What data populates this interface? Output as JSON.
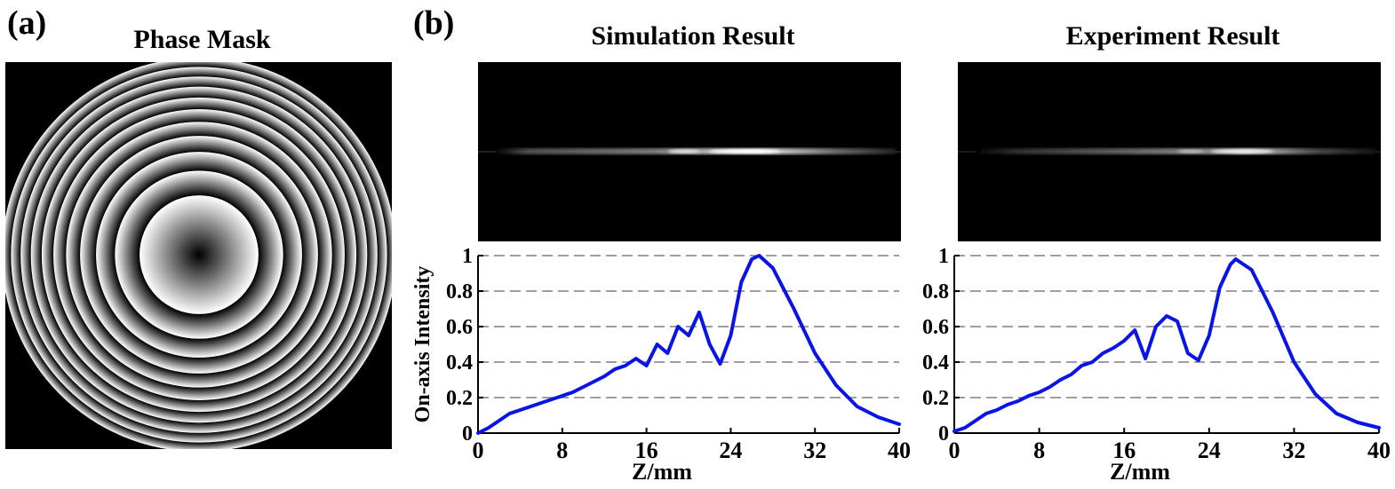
{
  "panel_labels": {
    "a": "(a)",
    "b": "(b)"
  },
  "titles": {
    "phase_mask": "Phase Mask",
    "simulation": "Simulation Result",
    "experiment": "Experiment Result"
  },
  "colors": {
    "curve": "#0a14e6",
    "grid": "#7f7f7f",
    "background": "#000000"
  },
  "chart_data": [
    {
      "type": "line",
      "title": "Simulation Result",
      "xlabel": "Z/mm",
      "ylabel": "On-axis Intensity",
      "xlim": [
        0,
        40
      ],
      "ylim": [
        0,
        1
      ],
      "xticks": [
        "0",
        "8",
        "16",
        "24",
        "32",
        "40"
      ],
      "yticks": [
        "0",
        "0.2",
        "0.4",
        "0.6",
        "0.8",
        "1"
      ],
      "grid": "horizontal dashed",
      "series": [
        {
          "values": [
            [
              0,
              0
            ],
            [
              1,
              0.03
            ],
            [
              2,
              0.07
            ],
            [
              3,
              0.11
            ],
            [
              4,
              0.13
            ],
            [
              5,
              0.15
            ],
            [
              6,
              0.17
            ],
            [
              7,
              0.19
            ],
            [
              8,
              0.21
            ],
            [
              9,
              0.23
            ],
            [
              10,
              0.26
            ],
            [
              11,
              0.29
            ],
            [
              12,
              0.32
            ],
            [
              13,
              0.36
            ],
            [
              14,
              0.38
            ],
            [
              15,
              0.42
            ],
            [
              16,
              0.38
            ],
            [
              17,
              0.5
            ],
            [
              18,
              0.45
            ],
            [
              19,
              0.6
            ],
            [
              20,
              0.55
            ],
            [
              21,
              0.68
            ],
            [
              22,
              0.5
            ],
            [
              23,
              0.39
            ],
            [
              24,
              0.55
            ],
            [
              25,
              0.85
            ],
            [
              26,
              0.98
            ],
            [
              26.7,
              1.0
            ],
            [
              28,
              0.93
            ],
            [
              30,
              0.7
            ],
            [
              32,
              0.45
            ],
            [
              34,
              0.27
            ],
            [
              36,
              0.15
            ],
            [
              38,
              0.09
            ],
            [
              40,
              0.05
            ]
          ]
        }
      ]
    },
    {
      "type": "line",
      "title": "Experiment Result",
      "xlabel": "Z/mm",
      "ylabel": "",
      "xlim": [
        0,
        40
      ],
      "ylim": [
        0,
        1
      ],
      "xticks": [
        "0",
        "8",
        "16",
        "24",
        "32",
        "40"
      ],
      "yticks": [
        "0",
        "0.2",
        "0.4",
        "0.6",
        "0.8",
        "1"
      ],
      "grid": "horizontal dashed",
      "series": [
        {
          "values": [
            [
              0,
              0.01
            ],
            [
              1,
              0.03
            ],
            [
              2,
              0.07
            ],
            [
              3,
              0.11
            ],
            [
              4,
              0.13
            ],
            [
              5,
              0.16
            ],
            [
              6,
              0.18
            ],
            [
              7,
              0.21
            ],
            [
              8,
              0.23
            ],
            [
              9,
              0.26
            ],
            [
              10,
              0.3
            ],
            [
              11,
              0.33
            ],
            [
              12,
              0.38
            ],
            [
              13,
              0.4
            ],
            [
              14,
              0.45
            ],
            [
              15,
              0.48
            ],
            [
              16,
              0.52
            ],
            [
              17,
              0.58
            ],
            [
              18,
              0.42
            ],
            [
              19,
              0.6
            ],
            [
              20,
              0.66
            ],
            [
              21,
              0.63
            ],
            [
              22,
              0.45
            ],
            [
              23,
              0.41
            ],
            [
              24,
              0.55
            ],
            [
              25,
              0.82
            ],
            [
              26,
              0.95
            ],
            [
              26.5,
              0.98
            ],
            [
              28,
              0.92
            ],
            [
              30,
              0.68
            ],
            [
              32,
              0.4
            ],
            [
              34,
              0.22
            ],
            [
              36,
              0.11
            ],
            [
              38,
              0.06
            ],
            [
              40,
              0.03
            ]
          ]
        }
      ]
    }
  ]
}
